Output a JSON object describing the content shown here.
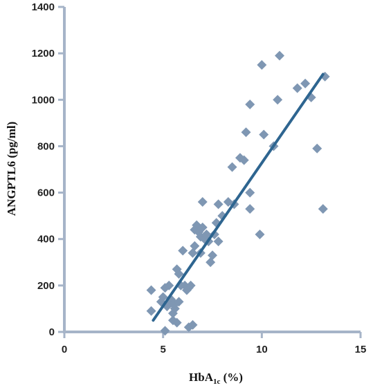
{
  "chart_data": {
    "type": "scatter",
    "title": "",
    "xlabel": "HbA",
    "xlabel_sub": "1c",
    "xlabel_unit": " (%)",
    "ylabel": "ANGPTL6 (pg/ml)",
    "xlim": [
      0,
      15
    ],
    "ylim": [
      0,
      1400
    ],
    "xticks": [
      "0",
      "5",
      "10",
      "15"
    ],
    "yticks": [
      "0",
      "200",
      "400",
      "600",
      "800",
      "1000",
      "1200",
      "1400"
    ],
    "grid": false,
    "colors": {
      "points": "#7f97b3",
      "trend": "#2e6590",
      "axis": "#a6b4c8"
    },
    "trendline": {
      "x": [
        4.5,
        13.1
      ],
      "y": [
        50,
        1110
      ]
    },
    "points": [
      {
        "x": 4.4,
        "y": 180
      },
      {
        "x": 4.4,
        "y": 90
      },
      {
        "x": 4.9,
        "y": 130
      },
      {
        "x": 5.0,
        "y": 150
      },
      {
        "x": 5.1,
        "y": 190
      },
      {
        "x": 5.1,
        "y": 5
      },
      {
        "x": 5.2,
        "y": 110
      },
      {
        "x": 5.3,
        "y": 200
      },
      {
        "x": 5.3,
        "y": 130
      },
      {
        "x": 5.4,
        "y": 140
      },
      {
        "x": 5.5,
        "y": 120
      },
      {
        "x": 5.5,
        "y": 50
      },
      {
        "x": 5.5,
        "y": 80
      },
      {
        "x": 5.6,
        "y": 100
      },
      {
        "x": 5.6,
        "y": 120
      },
      {
        "x": 5.7,
        "y": 40
      },
      {
        "x": 5.7,
        "y": 270
      },
      {
        "x": 5.8,
        "y": 250
      },
      {
        "x": 5.8,
        "y": 130
      },
      {
        "x": 5.9,
        "y": 200
      },
      {
        "x": 6.0,
        "y": 350
      },
      {
        "x": 6.1,
        "y": 200
      },
      {
        "x": 6.2,
        "y": 180
      },
      {
        "x": 6.3,
        "y": 190
      },
      {
        "x": 6.3,
        "y": 20
      },
      {
        "x": 6.4,
        "y": 200
      },
      {
        "x": 6.5,
        "y": 30
      },
      {
        "x": 6.5,
        "y": 340
      },
      {
        "x": 6.6,
        "y": 370
      },
      {
        "x": 6.6,
        "y": 440
      },
      {
        "x": 6.7,
        "y": 460
      },
      {
        "x": 6.8,
        "y": 430
      },
      {
        "x": 6.9,
        "y": 410
      },
      {
        "x": 6.9,
        "y": 340
      },
      {
        "x": 7.0,
        "y": 560
      },
      {
        "x": 7.0,
        "y": 450
      },
      {
        "x": 7.1,
        "y": 400
      },
      {
        "x": 7.2,
        "y": 420
      },
      {
        "x": 7.3,
        "y": 390
      },
      {
        "x": 7.4,
        "y": 300
      },
      {
        "x": 7.5,
        "y": 330
      },
      {
        "x": 7.6,
        "y": 420
      },
      {
        "x": 7.7,
        "y": 470
      },
      {
        "x": 7.8,
        "y": 390
      },
      {
        "x": 7.8,
        "y": 550
      },
      {
        "x": 8.0,
        "y": 500
      },
      {
        "x": 8.3,
        "y": 560
      },
      {
        "x": 8.6,
        "y": 550
      },
      {
        "x": 8.5,
        "y": 710
      },
      {
        "x": 8.9,
        "y": 750
      },
      {
        "x": 9.1,
        "y": 740
      },
      {
        "x": 9.2,
        "y": 860
      },
      {
        "x": 9.4,
        "y": 980
      },
      {
        "x": 9.4,
        "y": 600
      },
      {
        "x": 9.4,
        "y": 530
      },
      {
        "x": 9.9,
        "y": 420
      },
      {
        "x": 10.0,
        "y": 1150
      },
      {
        "x": 10.1,
        "y": 850
      },
      {
        "x": 10.6,
        "y": 800
      },
      {
        "x": 10.8,
        "y": 1000
      },
      {
        "x": 10.9,
        "y": 1190
      },
      {
        "x": 11.8,
        "y": 1050
      },
      {
        "x": 12.2,
        "y": 1070
      },
      {
        "x": 12.5,
        "y": 1010
      },
      {
        "x": 12.8,
        "y": 790
      },
      {
        "x": 13.1,
        "y": 530
      },
      {
        "x": 13.2,
        "y": 1100
      }
    ]
  }
}
